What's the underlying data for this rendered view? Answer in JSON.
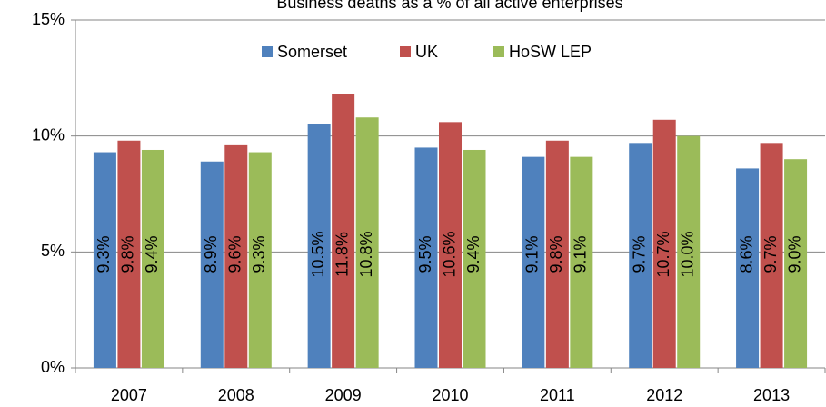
{
  "chart_data": {
    "type": "bar",
    "title": "Business deaths as a % of all active enterprises",
    "categories": [
      "2007",
      "2008",
      "2009",
      "2010",
      "2011",
      "2012",
      "2013"
    ],
    "series": [
      {
        "name": "Somerset",
        "color": "#4f81bd",
        "values": [
          9.3,
          8.9,
          10.5,
          9.5,
          9.1,
          9.7,
          8.6
        ],
        "value_labels": [
          "9.3%",
          "8.9%",
          "10.5%",
          "9.5%",
          "9.1%",
          "9.7%",
          "8.6%"
        ]
      },
      {
        "name": "UK",
        "color": "#c0504d",
        "values": [
          9.8,
          9.6,
          11.8,
          10.6,
          9.8,
          10.7,
          9.7
        ],
        "value_labels": [
          "9.8%",
          "9.6%",
          "11.8%",
          "10.6%",
          "9.8%",
          "10.7%",
          "9.7%"
        ]
      },
      {
        "name": "HoSW LEP",
        "color": "#9bbb59",
        "values": [
          9.4,
          9.3,
          10.8,
          9.4,
          9.1,
          10.0,
          9.0
        ],
        "value_labels": [
          "9.4%",
          "9.3%",
          "10.8%",
          "9.4%",
          "9.1%",
          "10.0%",
          "9.0%"
        ]
      }
    ],
    "ylim": [
      0,
      15
    ],
    "yticks": [
      {
        "value": 0,
        "label": "0%"
      },
      {
        "value": 5,
        "label": "5%"
      },
      {
        "value": 10,
        "label": "10%"
      },
      {
        "value": 15,
        "label": "15%"
      }
    ],
    "grid": true,
    "legend": "top"
  }
}
